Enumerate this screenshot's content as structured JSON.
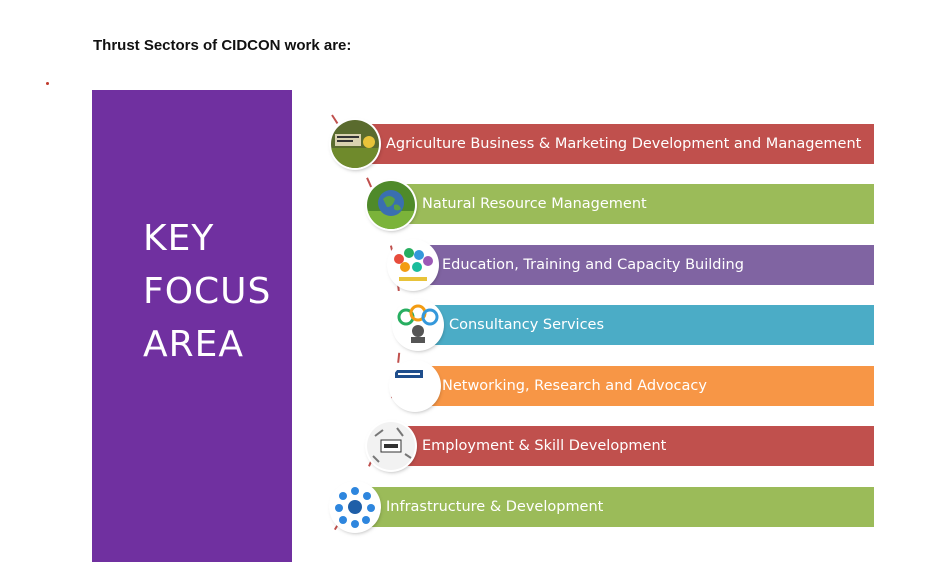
{
  "title": "Thrust Sectors of CIDCON work are:",
  "key_area": {
    "lines": [
      "KEY",
      "FOCUS",
      "AREA"
    ],
    "color": "#7030a0"
  },
  "sectors": [
    {
      "label": "Agriculture Business & Marketing Development and Management",
      "color": "#c0504d",
      "icon": "agriculture-business-icon"
    },
    {
      "label": "Natural Resource Management",
      "color": "#9bbb59",
      "icon": "globe-leaf-icon"
    },
    {
      "label": "Education, Training and Capacity Building",
      "color": "#8064a2",
      "icon": "capacity-building-icon"
    },
    {
      "label": "Consultancy Services",
      "color": "#4bacc6",
      "icon": "consultancy-icon"
    },
    {
      "label": "Networking, Research and Advocacy",
      "color": "#f79646",
      "icon": "networking-icon"
    },
    {
      "label": "Employment & Skill Development",
      "color": "#c0504d",
      "icon": "skill-icon"
    },
    {
      "label": "Infrastructure & Development",
      "color": "#9bbb59",
      "icon": "infrastructure-network-icon"
    }
  ]
}
